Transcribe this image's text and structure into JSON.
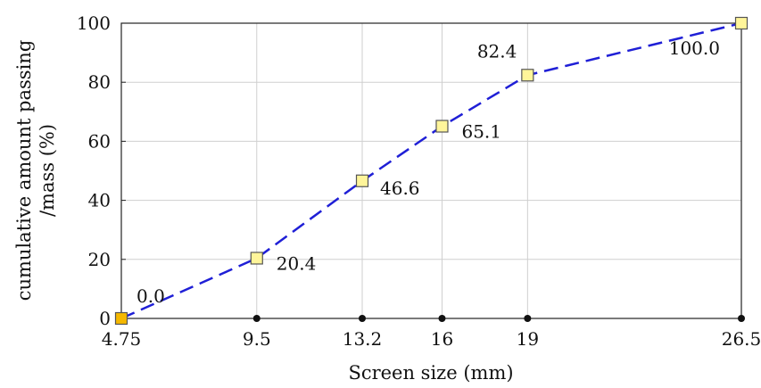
{
  "chart_data": {
    "type": "line",
    "title": "",
    "xlabel": "Screen size (mm)",
    "ylabel_lines": [
      "cumulative amount passing",
      "/mass (%)"
    ],
    "x": [
      4.75,
      9.5,
      13.2,
      16,
      19,
      26.5
    ],
    "x_tick_labels": [
      "4.75",
      "9.5",
      "13.2",
      "16",
      "19",
      "26.5"
    ],
    "y_ticks": [
      0,
      20,
      40,
      60,
      80,
      100
    ],
    "xlim": [
      4.75,
      26.5
    ],
    "ylim": [
      0,
      100
    ],
    "grid": true,
    "series": [
      {
        "values": [
          0.0,
          20.4,
          46.6,
          65.1,
          82.4,
          100.0
        ],
        "labels": [
          "0.0",
          "20.4",
          "46.6",
          "65.1",
          "82.4",
          "100.0"
        ],
        "line_color": "#1f1fd6",
        "line_style": "dashed",
        "marker": "square",
        "marker_fill": "#fff59a",
        "first_marker_fill": "#f5b800",
        "marker_edge": "#555555"
      }
    ]
  }
}
